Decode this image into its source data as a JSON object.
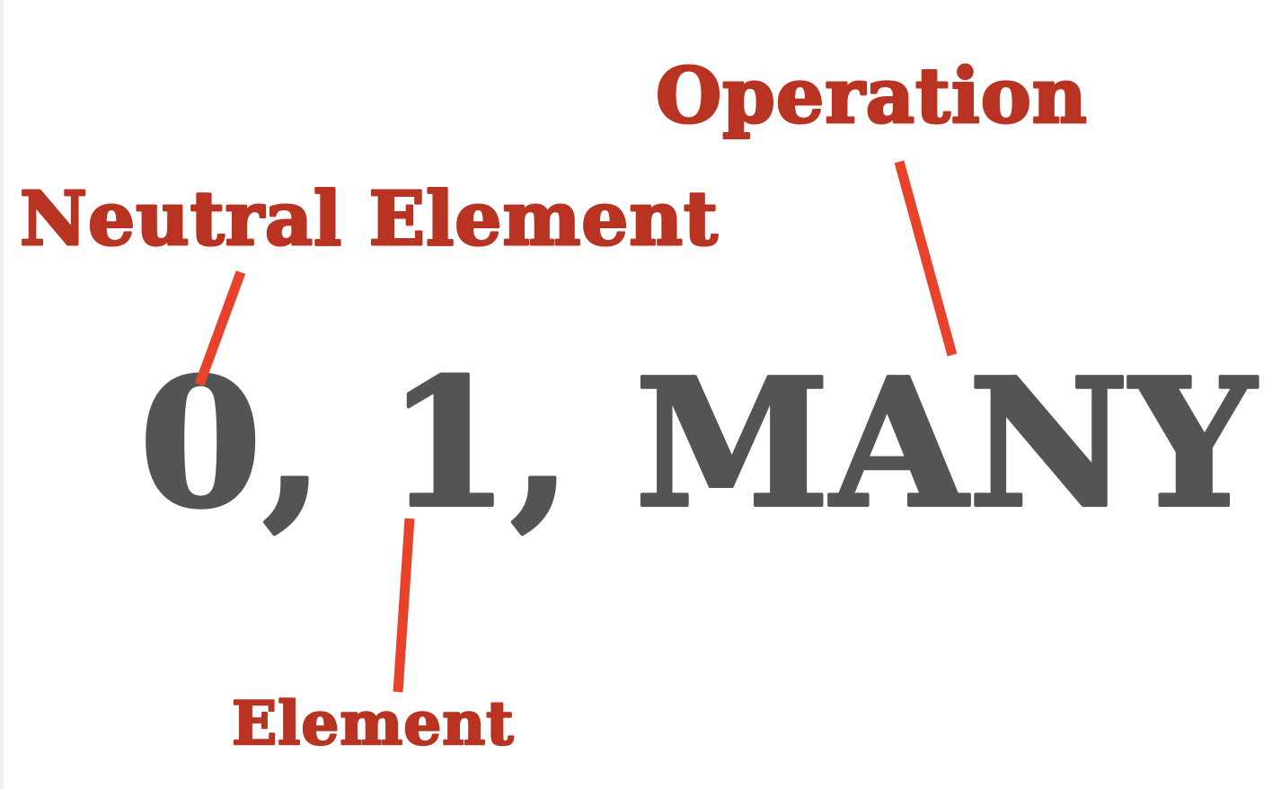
{
  "slide": {
    "main_text": "0, 1, MANY",
    "labels": {
      "operation": "Operation",
      "neutral_element": "Neutral Element",
      "element": "Element"
    }
  },
  "colors": {
    "label_red": "#b83321",
    "connector_red": "#e8432a",
    "main_gray": "#545454",
    "background": "#ffffff"
  }
}
